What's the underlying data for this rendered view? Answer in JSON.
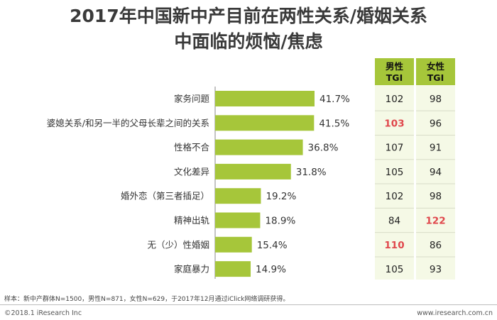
{
  "title_line1": "2017年中国新中产目前在两性关系/婚姻关系",
  "title_line2": "中面临的烦恼/焦虑",
  "chart_data": {
    "type": "bar",
    "orientation": "horizontal",
    "categories": [
      "家务问题",
      "婆媳关系/和另一半的父母长辈之间的关系",
      "性格不合",
      "文化差异",
      "婚外恋（第三者插足）",
      "精神出轨",
      "无（少）性婚姻",
      "家庭暴力"
    ],
    "values": [
      41.7,
      41.5,
      36.8,
      31.8,
      19.2,
      18.9,
      15.4,
      14.9
    ],
    "value_labels": [
      "41.7%",
      "41.5%",
      "36.8%",
      "31.8%",
      "19.2%",
      "18.9%",
      "15.4%",
      "14.9%"
    ],
    "bar_color": "#a6c63a",
    "table": {
      "headers": [
        {
          "line1": "男性",
          "line2": "TGI"
        },
        {
          "line1": "女性",
          "line2": "TGI"
        }
      ],
      "male_tgi": [
        "102",
        "103",
        "107",
        "105",
        "102",
        "84",
        "110",
        "105"
      ],
      "female_tgi": [
        "98",
        "96",
        "91",
        "94",
        "98",
        "122",
        "86",
        "93"
      ],
      "highlight_male": [
        false,
        true,
        false,
        false,
        false,
        false,
        true,
        false
      ],
      "highlight_female": [
        false,
        false,
        false,
        false,
        false,
        true,
        false,
        false
      ],
      "highlight_color": "#e0474c"
    }
  },
  "footnote": "样本：新中产群体N=1500，男性N=871，女性N=629，于2017年12月通过iClick网络调研获得。",
  "copyright": "©2018.1 iResearch Inc",
  "website": "www.iresearch.com.cn"
}
